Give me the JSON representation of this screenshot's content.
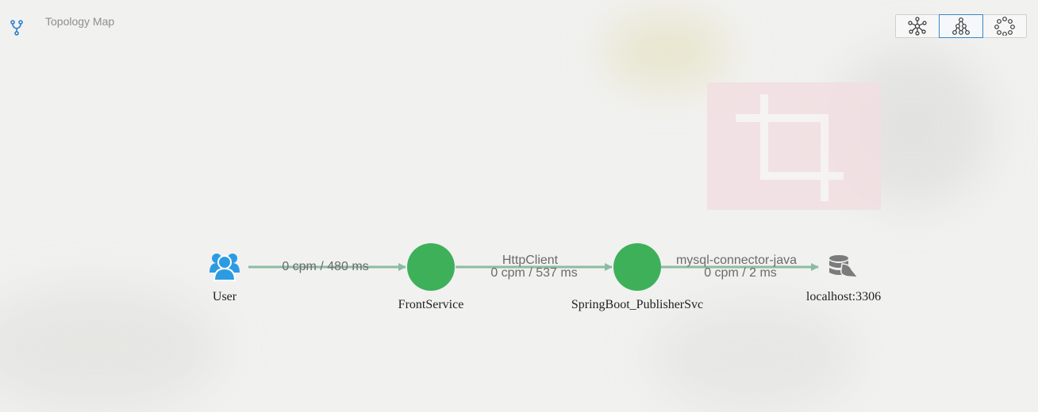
{
  "header": {
    "title": "Topology Map",
    "icon": "topology-branch-icon"
  },
  "layout_switcher": {
    "options": [
      {
        "icon": "hierarchy-layout-icon",
        "active": false
      },
      {
        "icon": "force-layout-icon",
        "active": true
      },
      {
        "icon": "circle-layout-icon",
        "active": false
      }
    ]
  },
  "nodes": [
    {
      "id": "user",
      "label": "User",
      "icon": "users-icon"
    },
    {
      "id": "front",
      "label": "FrontService",
      "icon": "service-circle-icon"
    },
    {
      "id": "publisher",
      "label": "SpringBoot_PublisherSvc",
      "icon": "service-circle-icon"
    },
    {
      "id": "db",
      "label": "localhost:3306",
      "icon": "database-icon"
    }
  ],
  "edges": [
    {
      "from": "user",
      "to": "front",
      "component": "",
      "metrics": "0 cpm / 480 ms"
    },
    {
      "from": "front",
      "to": "publisher",
      "component": "HttpClient",
      "metrics": "0 cpm / 537 ms"
    },
    {
      "from": "publisher",
      "to": "db",
      "component": "mysql-connector-java",
      "metrics": "0 cpm / 2 ms"
    }
  ],
  "colors": {
    "service_node": "#3eb05a",
    "user_icon": "#2d9be3",
    "database_icon": "#7b7b7b",
    "edge": "#8cbca0",
    "accent": "#3a86c8"
  }
}
